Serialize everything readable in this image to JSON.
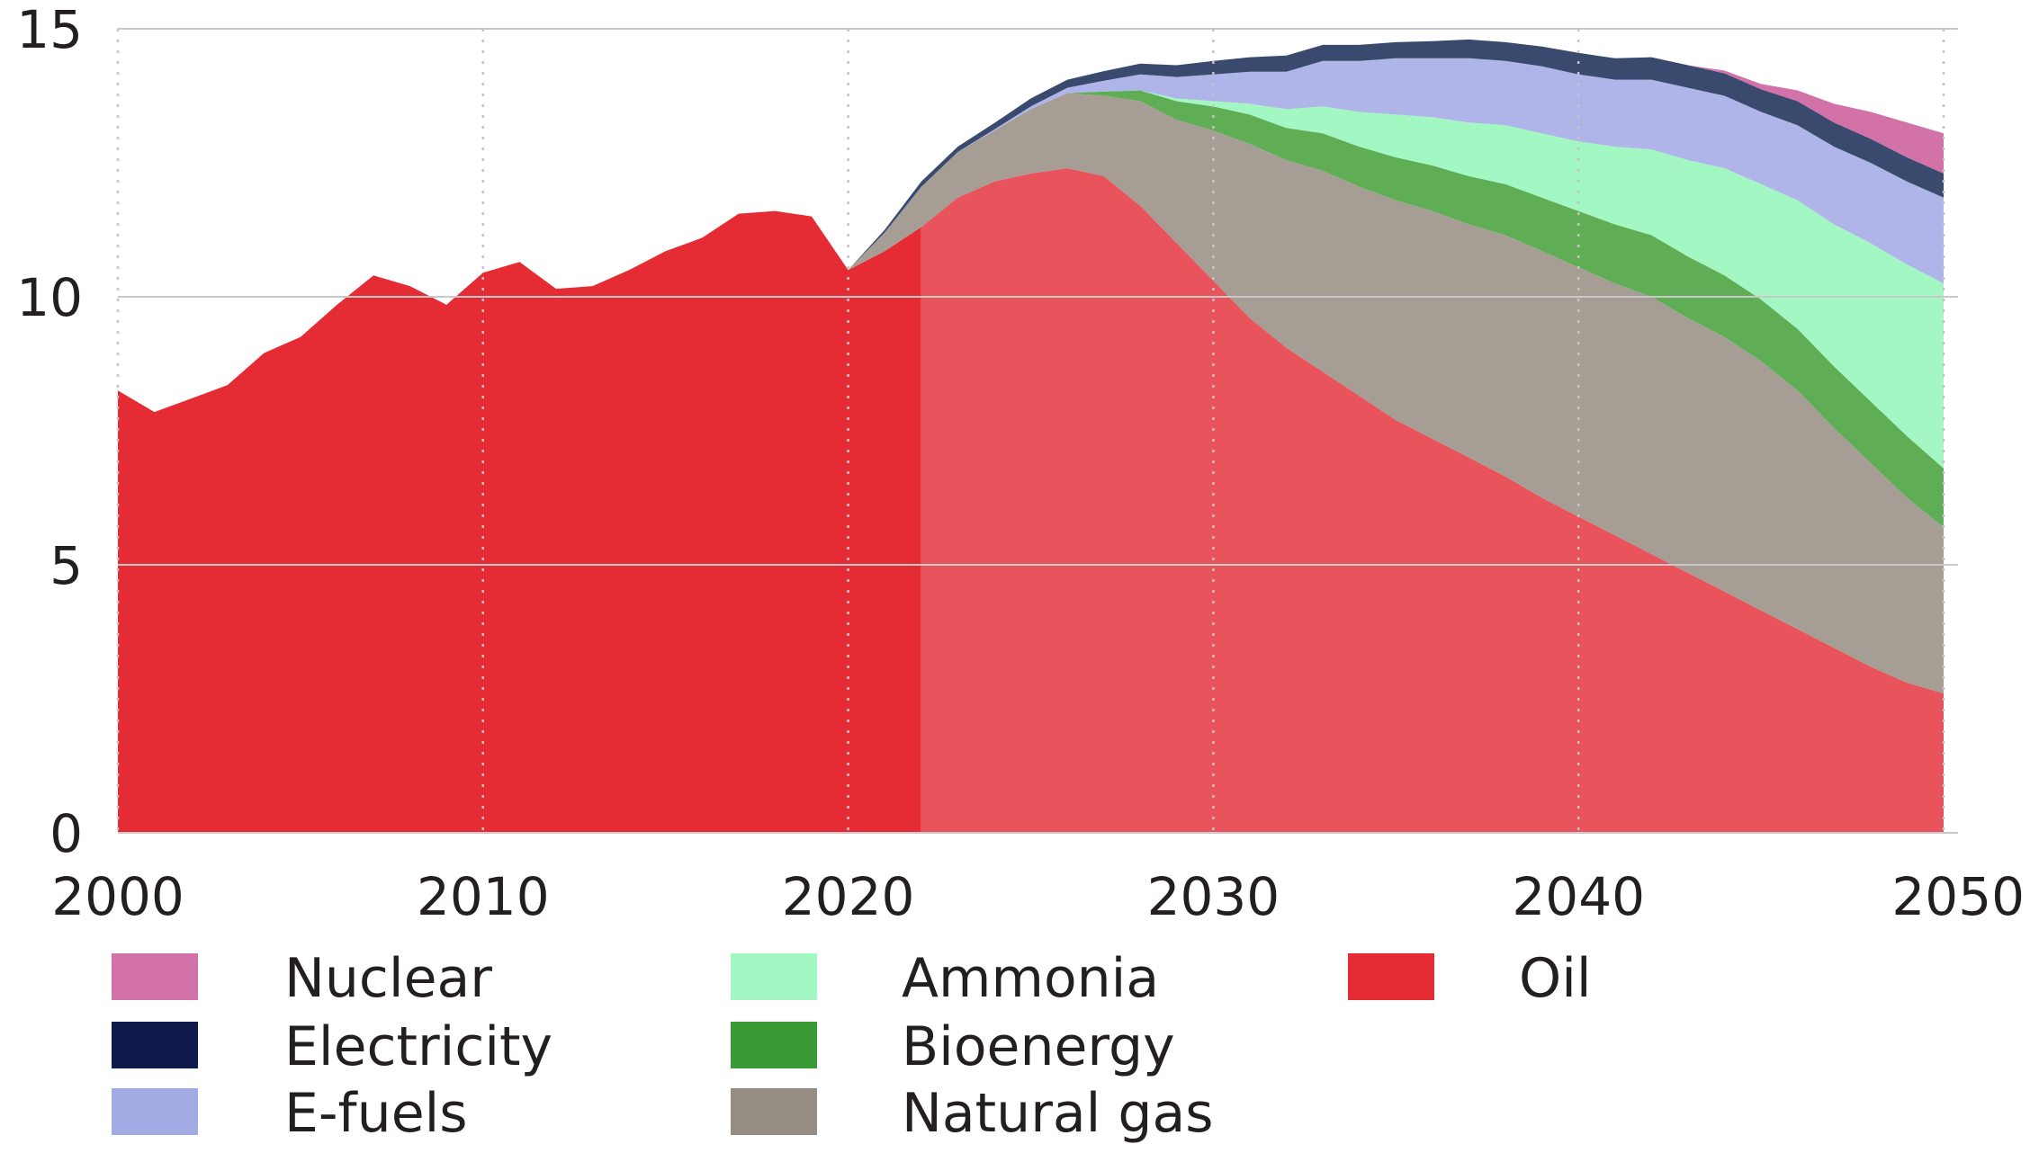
{
  "chart_data": {
    "type": "area",
    "title": "",
    "xlabel": "",
    "ylabel": "",
    "xlim": [
      2000,
      2050
    ],
    "ylim": [
      0,
      15
    ],
    "x_ticks": [
      "2000",
      "2010",
      "2020",
      "2030",
      "2040",
      "2050"
    ],
    "y_ticks": [
      "0",
      "5",
      "10",
      "15"
    ],
    "projection_start": 2022,
    "grid": "vertical dotted at decades, horizontal solid at y ticks",
    "legend_position": "bottom",
    "legend": [
      "Nuclear",
      "Ammonia",
      "Oil",
      "Electricity",
      "Bioenergy",
      "E-fuels",
      "Natural gas"
    ],
    "x": [
      2000,
      2001,
      2002,
      2003,
      2004,
      2005,
      2006,
      2007,
      2008,
      2009,
      2010,
      2011,
      2012,
      2013,
      2014,
      2015,
      2016,
      2017,
      2018,
      2019,
      2020,
      2021,
      2022,
      2023,
      2024,
      2025,
      2026,
      2027,
      2028,
      2029,
      2030,
      2031,
      2032,
      2033,
      2034,
      2035,
      2036,
      2037,
      2038,
      2039,
      2040,
      2041,
      2042,
      2043,
      2044,
      2045,
      2046,
      2047,
      2048,
      2049,
      2050
    ],
    "series": [
      {
        "name": "Oil",
        "color": "#e52b34",
        "projection_color": "#e8535c",
        "values": [
          8.25,
          7.85,
          8.1,
          8.35,
          8.95,
          9.25,
          9.85,
          10.4,
          10.2,
          9.85,
          10.45,
          10.65,
          10.15,
          10.2,
          10.5,
          10.85,
          11.1,
          11.55,
          11.6,
          11.5,
          10.5,
          10.85,
          11.3,
          11.85,
          12.15,
          12.3,
          12.4,
          12.25,
          11.7,
          11.0,
          10.3,
          9.6,
          9.05,
          8.6,
          8.15,
          7.7,
          7.35,
          7.0,
          6.65,
          6.25,
          5.9,
          5.55,
          5.2,
          4.85,
          4.5,
          4.15,
          3.8,
          3.45,
          3.1,
          2.8,
          2.6
        ]
      },
      {
        "name": "Natural gas",
        "color": "#a69e95",
        "values": [
          0,
          0,
          0,
          0,
          0,
          0,
          0,
          0,
          0,
          0,
          0,
          0,
          0,
          0,
          0,
          0,
          0,
          0,
          0,
          0,
          0,
          0.35,
          0.75,
          0.85,
          0.95,
          1.2,
          1.4,
          1.5,
          1.95,
          2.3,
          2.8,
          3.25,
          3.5,
          3.75,
          3.9,
          4.1,
          4.25,
          4.35,
          4.5,
          4.6,
          4.65,
          4.7,
          4.8,
          4.75,
          4.75,
          4.65,
          4.45,
          4.1,
          3.8,
          3.45,
          3.1
        ]
      },
      {
        "name": "Bioenergy",
        "color": "#5fae56",
        "values": [
          0,
          0,
          0,
          0,
          0,
          0,
          0,
          0,
          0,
          0,
          0,
          0,
          0,
          0,
          0,
          0,
          0,
          0,
          0,
          0,
          0,
          0,
          0,
          0,
          0,
          0,
          0,
          0.08,
          0.2,
          0.35,
          0.45,
          0.55,
          0.6,
          0.7,
          0.75,
          0.8,
          0.85,
          0.9,
          0.95,
          1.0,
          1.05,
          1.1,
          1.15,
          1.15,
          1.15,
          1.15,
          1.15,
          1.15,
          1.15,
          1.15,
          1.1
        ]
      },
      {
        "name": "Ammonia",
        "color": "#a3f7c3",
        "values": [
          0,
          0,
          0,
          0,
          0,
          0,
          0,
          0,
          0,
          0,
          0,
          0,
          0,
          0,
          0,
          0,
          0,
          0,
          0,
          0,
          0,
          0,
          0,
          0,
          0,
          0,
          0,
          0,
          0,
          0.05,
          0.1,
          0.2,
          0.35,
          0.5,
          0.65,
          0.8,
          0.9,
          1.0,
          1.1,
          1.2,
          1.3,
          1.45,
          1.6,
          1.8,
          2.0,
          2.15,
          2.4,
          2.65,
          2.95,
          3.2,
          3.45
        ]
      },
      {
        "name": "E-fuels",
        "color": "#afb5e8",
        "values": [
          0,
          0,
          0,
          0,
          0,
          0,
          0,
          0,
          0,
          0,
          0,
          0,
          0,
          0,
          0,
          0,
          0,
          0,
          0,
          0,
          0,
          0,
          0,
          0,
          0.02,
          0.05,
          0.1,
          0.2,
          0.3,
          0.4,
          0.5,
          0.6,
          0.7,
          0.85,
          0.95,
          1.05,
          1.1,
          1.2,
          1.2,
          1.25,
          1.25,
          1.25,
          1.3,
          1.35,
          1.35,
          1.35,
          1.4,
          1.45,
          1.5,
          1.55,
          1.6
        ]
      },
      {
        "name": "Electricity",
        "color": "#394a6e",
        "values": [
          0,
          0,
          0,
          0,
          0,
          0,
          0,
          0,
          0,
          0,
          0,
          0,
          0,
          0,
          0,
          0,
          0,
          0,
          0,
          0,
          0,
          0.05,
          0.1,
          0.1,
          0.12,
          0.15,
          0.15,
          0.18,
          0.2,
          0.22,
          0.25,
          0.27,
          0.3,
          0.3,
          0.3,
          0.3,
          0.32,
          0.35,
          0.35,
          0.37,
          0.4,
          0.4,
          0.42,
          0.42,
          0.42,
          0.42,
          0.45,
          0.45,
          0.45,
          0.45,
          0.45
        ]
      },
      {
        "name": "Nuclear",
        "color": "#d272a8",
        "values": [
          0,
          0,
          0,
          0,
          0,
          0,
          0,
          0,
          0,
          0,
          0,
          0,
          0,
          0,
          0,
          0,
          0,
          0,
          0,
          0,
          0,
          0,
          0,
          0,
          0,
          0,
          0,
          0,
          0,
          0,
          0,
          0,
          0,
          0,
          0,
          0,
          0,
          0,
          0,
          0,
          0,
          0,
          0,
          0,
          0.05,
          0.1,
          0.2,
          0.35,
          0.5,
          0.65,
          0.75
        ]
      }
    ]
  },
  "legend_items": [
    {
      "label": "Nuclear",
      "color": "#d272a8"
    },
    {
      "label": "Ammonia",
      "color": "#a3f7c3"
    },
    {
      "label": "Oil",
      "color": "#e52b34"
    },
    {
      "label": "Electricity",
      "color": "#0d1a4a"
    },
    {
      "label": "Bioenergy",
      "color": "#3a9a35"
    },
    {
      "label": "E-fuels",
      "color": "#a3abe4"
    },
    {
      "label": "Natural gas",
      "color": "#958d84"
    }
  ]
}
